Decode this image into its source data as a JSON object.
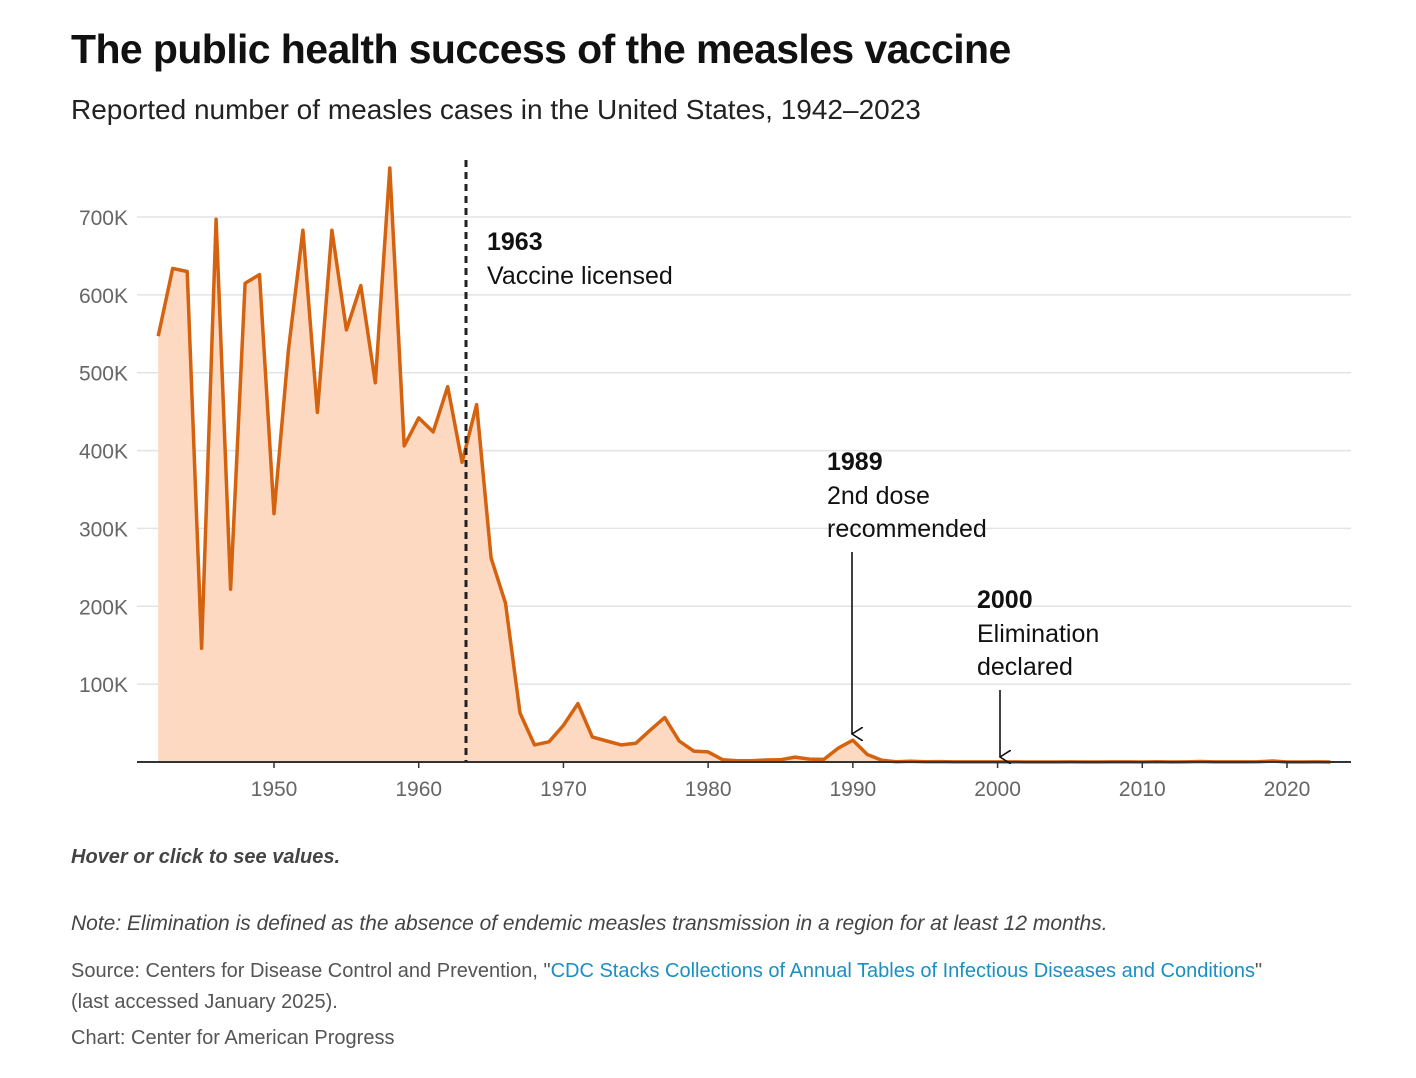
{
  "header": {
    "title": "The public health success of the measles vaccine",
    "subtitle": "Reported number of measles cases in the United States, 1942–2023"
  },
  "colors": {
    "line": "#d4620f",
    "area": "#fdd9c2",
    "grid": "#e3e3e3",
    "axis": "#333333",
    "link": "#1a8fc4"
  },
  "chart_data": {
    "type": "area",
    "x_domain": [
      1942,
      2023
    ],
    "ylim": [
      0,
      760000
    ],
    "xticks": [
      1950,
      1960,
      1970,
      1980,
      1990,
      2000,
      2010,
      2020
    ],
    "yticks": [
      {
        "value": 100000,
        "label": "100K"
      },
      {
        "value": 200000,
        "label": "200K"
      },
      {
        "value": 300000,
        "label": "300K"
      },
      {
        "value": 400000,
        "label": "400K"
      },
      {
        "value": 500000,
        "label": "500K"
      },
      {
        "value": 600000,
        "label": "600K"
      },
      {
        "value": 700000,
        "label": "700K"
      }
    ],
    "grid": true,
    "x": [
      1942,
      1943,
      1944,
      1945,
      1946,
      1947,
      1948,
      1949,
      1950,
      1951,
      1952,
      1953,
      1954,
      1955,
      1956,
      1957,
      1958,
      1959,
      1960,
      1961,
      1962,
      1963,
      1964,
      1965,
      1966,
      1967,
      1968,
      1969,
      1970,
      1971,
      1972,
      1973,
      1974,
      1975,
      1976,
      1977,
      1978,
      1979,
      1980,
      1981,
      1982,
      1983,
      1984,
      1985,
      1986,
      1987,
      1988,
      1989,
      1990,
      1991,
      1992,
      1993,
      1994,
      1995,
      1996,
      1997,
      1998,
      1999,
      2000,
      2001,
      2002,
      2003,
      2004,
      2005,
      2006,
      2007,
      2008,
      2009,
      2010,
      2011,
      2012,
      2013,
      2014,
      2015,
      2016,
      2017,
      2018,
      2019,
      2020,
      2021,
      2022,
      2023
    ],
    "values": [
      547000,
      634000,
      630000,
      146000,
      697000,
      222000,
      615000,
      626000,
      319000,
      530000,
      683000,
      449000,
      683000,
      555000,
      612000,
      487000,
      763000,
      406000,
      442000,
      424000,
      482000,
      385000,
      459000,
      262000,
      204000,
      63000,
      22000,
      26000,
      47000,
      75000,
      32000,
      27000,
      22000,
      24000,
      41000,
      57000,
      27000,
      14000,
      13000,
      3000,
      1700,
      1500,
      2600,
      2800,
      6300,
      3700,
      3400,
      18000,
      28000,
      9600,
      2200,
      312,
      963,
      309,
      508,
      138,
      100,
      100,
      86,
      116,
      44,
      56,
      37,
      66,
      55,
      43,
      140,
      71,
      63,
      220,
      55,
      187,
      667,
      188,
      86,
      120,
      375,
      1274,
      13,
      49,
      121,
      59
    ],
    "annotations": [
      {
        "year": "1963",
        "text": [
          "Vaccine licensed"
        ]
      },
      {
        "year": "1989",
        "text": [
          "2nd dose",
          "recommended"
        ]
      },
      {
        "year": "2000",
        "text": [
          "Elimination",
          "declared"
        ]
      }
    ]
  },
  "footer": {
    "hover_hint": "Hover or click to see values.",
    "note": "Note: Elimination is defined as the absence of endemic measles transmission in a region for at least 12 months.",
    "source_prefix": "Source: Centers for Disease Control and Prevention, \"",
    "source_link": "CDC Stacks Collections of Annual Tables of Infectious Diseases and Conditions",
    "source_suffix": "\" (last accessed January 2025).",
    "credit": "Chart: Center for American Progress"
  }
}
